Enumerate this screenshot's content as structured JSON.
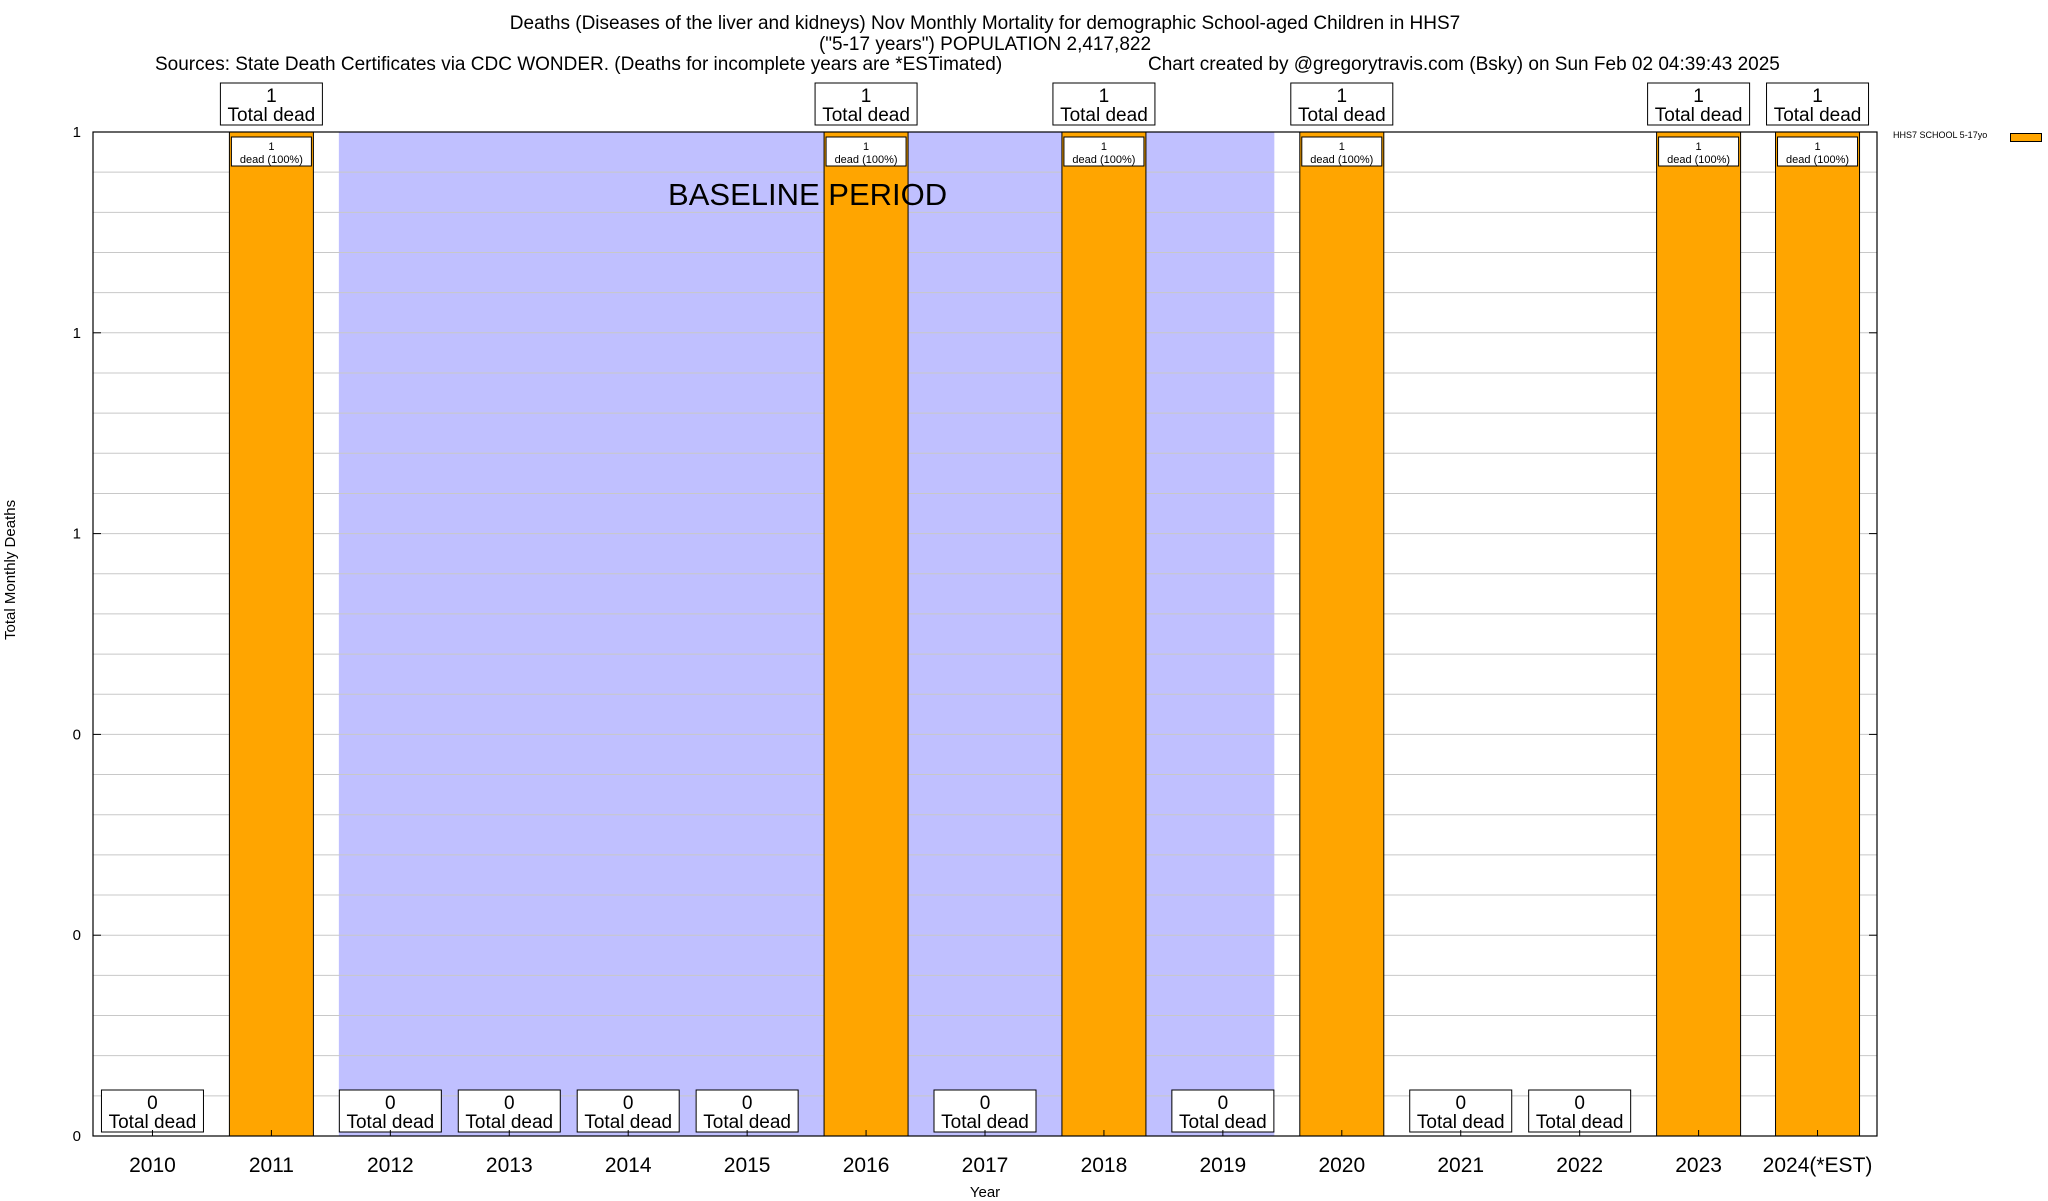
{
  "chart_data": {
    "type": "bar",
    "title": "Deaths (Diseases of the liver and kidneys) Nov Monthly Mortality for demographic School-aged Children in HHS7",
    "subtitle": "(\"5-17 years\") POPULATION 2,417,822",
    "sources": "Sources: State Death Certificates via CDC WONDER. (Deaths for incomplete years are *ESTimated)",
    "credit": "Chart created by @gregorytravis.com (Bsky) on Sun Feb 02 04:39:43 2025",
    "xlabel": "Year",
    "ylabel": "Total Monthly Deaths",
    "ylim": [
      0,
      1
    ],
    "ytick_values": [
      0,
      0.2,
      0.4,
      0.6,
      0.8,
      1.0
    ],
    "ytick_labels": [
      "0",
      "0",
      "0",
      "1",
      "1",
      "1"
    ],
    "grid": true,
    "legend_position": "top-right",
    "baseline": {
      "label": "BASELINE PERIOD",
      "from": "2012",
      "to": "2019"
    },
    "categories": [
      "2010",
      "2011",
      "2012",
      "2013",
      "2014",
      "2015",
      "2016",
      "2017",
      "2018",
      "2019",
      "2020",
      "2021",
      "2022",
      "2023",
      "2024(*EST)"
    ],
    "series": [
      {
        "name": "HHS7 SCHOOL 5-17yo",
        "color": "#FFA500",
        "values": [
          0,
          1,
          0,
          0,
          0,
          0,
          1,
          0,
          1,
          0,
          1,
          0,
          0,
          1,
          1
        ]
      }
    ],
    "top_label_suffix": "Total dead",
    "inner_labels": [
      "",
      "1\ndead (100%)",
      "",
      "",
      "",
      "",
      "1\ndead (100%)",
      "",
      "1\ndead (100%)",
      "",
      "1\ndead (100%)",
      "",
      "",
      "1\ndead (100%)",
      "1\ndead (100%)"
    ],
    "colors": {
      "bar": "#FFA500",
      "baseline": "#C0C0FF",
      "grid": "#C8C8C8"
    }
  }
}
